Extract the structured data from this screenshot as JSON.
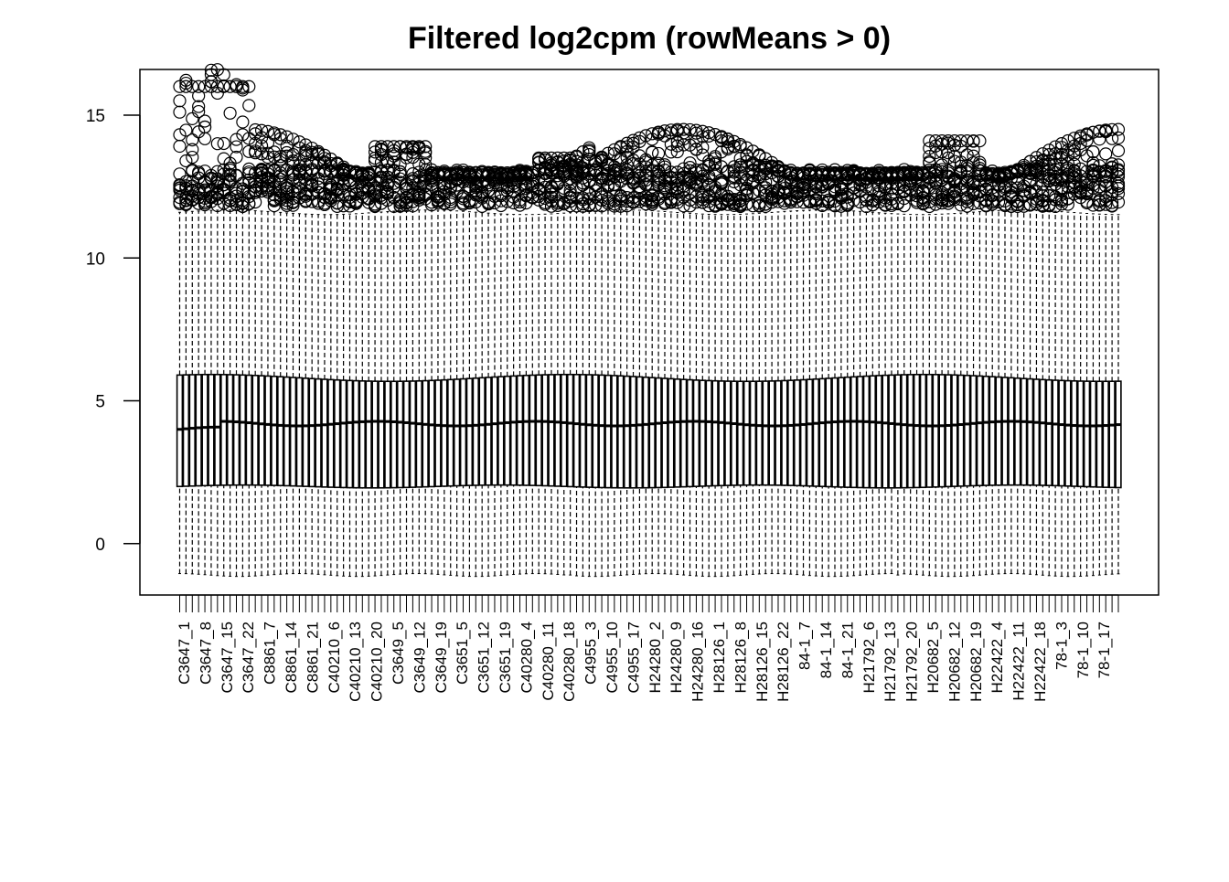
{
  "chart_data": {
    "type": "box",
    "title": "Filtered log2cpm (rowMeans > 0)",
    "xlabel": "",
    "ylabel": "",
    "ylim": [
      -1.8,
      16.6
    ],
    "y_ticks": [
      0,
      5,
      10,
      15
    ],
    "grid": false,
    "legend": "none",
    "box_count": 150,
    "tick_labels": [
      "C3647_1",
      "C3647_8",
      "C3647_15",
      "C3647_22",
      "C8861_7",
      "C8861_14",
      "C8861_21",
      "C40210_6",
      "C40210_13",
      "C40210_20",
      "C3649_5",
      "C3649_12",
      "C3649_19",
      "C3651_5",
      "C3651_12",
      "C3651_19",
      "C40280_4",
      "C40280_11",
      "C40280_18",
      "C4955_3",
      "C4955_10",
      "C4955_17",
      "H24280_2",
      "H24280_9",
      "H24280_16",
      "H28126_1",
      "H28126_8",
      "H28126_15",
      "H28126_22",
      "84-1_7",
      "84-1_14",
      "84-1_21",
      "H21792_6",
      "H21792_13",
      "H21792_20",
      "H20682_5",
      "H20682_12",
      "H20682_19",
      "H22422_4",
      "H22422_11",
      "H22422_18",
      "78-1_3",
      "78-1_10",
      "78-1_17"
    ],
    "summary": {
      "whisker_low": -1.1,
      "q1": 2.0,
      "median": 4.2,
      "q3": 5.8,
      "whisker_high": 11.6,
      "outlier_range": [
        11.8,
        16.0
      ],
      "median_first_group": 4.0
    }
  }
}
